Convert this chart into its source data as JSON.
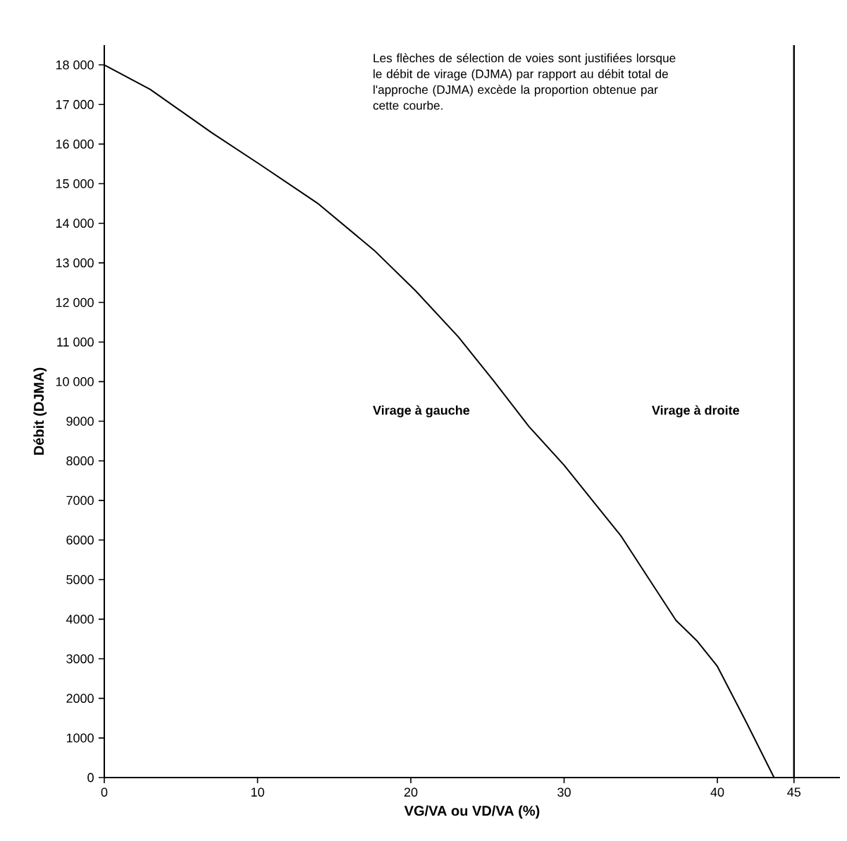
{
  "chart_data": {
    "type": "line",
    "xlabel": "VG/VA ou VD/VA (%)",
    "ylabel": "Débit (DJMA)",
    "annotations": [
      "Les flèches de sélection de voies sont justifiées lorsque le débit de virage (DJMA) par rapport au débit total de l'approche (DJMA) excède la proportion obtenue par cette courbe.",
      "Virage à gauche",
      "Virage à droite"
    ],
    "x": [
      0,
      3.0,
      7.0,
      10.1,
      13.9,
      17.6,
      20.3,
      23.1,
      25.4,
      27.7,
      30.0,
      32.3,
      33.7,
      35.5,
      37.3,
      38.7,
      40.0,
      41.9,
      43.7
    ],
    "series": [
      {
        "color": "#000000",
        "values": [
          18000,
          17380,
          16290,
          15500,
          14510,
          13320,
          12300,
          11130,
          10020,
          8870,
          7890,
          6780,
          6110,
          5040,
          3970,
          3440,
          2810,
          1390,
          0
        ]
      }
    ],
    "xlim": [
      0,
      48
    ],
    "ylim": [
      0,
      18500
    ],
    "xticks": [
      0,
      10,
      20,
      30,
      40,
      45
    ],
    "yticks": [
      0,
      1000,
      2000,
      3000,
      4000,
      5000,
      6000,
      7000,
      8000,
      9000,
      {
        "value": 10000,
        "label": "10 000"
      },
      {
        "value": 11000,
        "label": "11 000"
      },
      {
        "value": 12000,
        "label": "12 000"
      },
      {
        "value": 13000,
        "label": "13 000"
      },
      {
        "value": 14000,
        "label": "14 000"
      },
      {
        "value": 15000,
        "label": "15 000"
      },
      {
        "value": 16000,
        "label": "16 000"
      },
      {
        "value": 17000,
        "label": "17 000"
      },
      {
        "value": 18000,
        "label": "18 000"
      }
    ],
    "ref_lines": [
      {
        "axis": "x",
        "value": 45,
        "color": "#000000"
      }
    ],
    "grid": false,
    "marker": "none"
  }
}
